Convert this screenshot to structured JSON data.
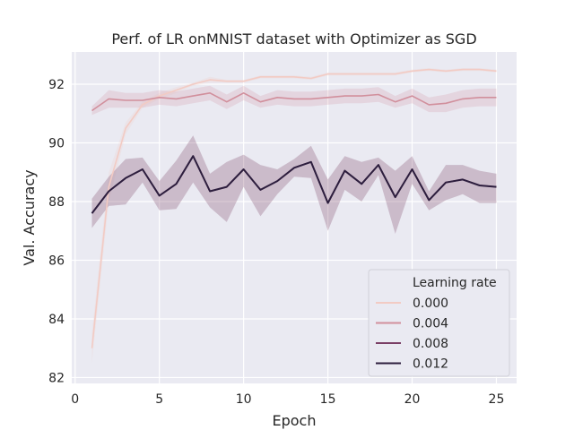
{
  "chart_data": {
    "type": "line",
    "title": "Perf. of LR onMNIST dataset with Optimizer as SGD",
    "xlabel": "Epoch",
    "ylabel": "Val. Accuracy",
    "xlim": [
      -0.2,
      26.2
    ],
    "ylim": [
      81.8,
      93.1
    ],
    "xticks": [
      0,
      5,
      10,
      15,
      20,
      25
    ],
    "yticks": [
      82,
      84,
      86,
      88,
      90,
      92
    ],
    "grid": true,
    "legend": {
      "title": "Learning rate",
      "placement": "lower-right"
    },
    "x": [
      1,
      2,
      3,
      4,
      5,
      6,
      7,
      8,
      9,
      10,
      11,
      12,
      13,
      14,
      15,
      16,
      17,
      18,
      19,
      20,
      21,
      22,
      23,
      24,
      25
    ],
    "series": [
      {
        "name": "0.000",
        "color": "#f2cbc4",
        "values": [
          83.0,
          88.5,
          90.5,
          91.3,
          91.6,
          91.8,
          92.0,
          92.15,
          92.1,
          92.1,
          92.25,
          92.25,
          92.25,
          92.2,
          92.35,
          92.35,
          92.35,
          92.35,
          92.35,
          92.45,
          92.5,
          92.45,
          92.5,
          92.5,
          92.45
        ],
        "lower": [
          82.5,
          88.0,
          90.3,
          91.2,
          91.5,
          91.7,
          91.95,
          92.05,
          92.05,
          92.05,
          92.2,
          92.2,
          92.2,
          92.15,
          92.3,
          92.3,
          92.3,
          92.3,
          92.3,
          92.4,
          92.45,
          92.4,
          92.45,
          92.45,
          92.4
        ],
        "upper": [
          83.5,
          89.0,
          90.7,
          91.4,
          91.7,
          91.9,
          92.05,
          92.25,
          92.15,
          92.15,
          92.3,
          92.3,
          92.3,
          92.25,
          92.4,
          92.4,
          92.4,
          92.4,
          92.4,
          92.5,
          92.55,
          92.5,
          92.55,
          92.55,
          92.5
        ]
      },
      {
        "name": "0.004",
        "color": "#d18f9c",
        "values": [
          91.1,
          91.5,
          91.45,
          91.45,
          91.55,
          91.5,
          91.6,
          91.7,
          91.4,
          91.7,
          91.4,
          91.55,
          91.5,
          91.5,
          91.55,
          91.6,
          91.6,
          91.65,
          91.4,
          91.6,
          91.3,
          91.35,
          91.5,
          91.55,
          91.55
        ],
        "lower": [
          90.95,
          91.2,
          91.2,
          91.2,
          91.3,
          91.25,
          91.35,
          91.45,
          91.15,
          91.45,
          91.2,
          91.3,
          91.25,
          91.25,
          91.3,
          91.35,
          91.35,
          91.4,
          91.2,
          91.35,
          91.05,
          91.05,
          91.2,
          91.25,
          91.25
        ],
        "upper": [
          91.25,
          91.8,
          91.7,
          91.7,
          91.8,
          91.75,
          91.85,
          91.95,
          91.65,
          91.95,
          91.6,
          91.8,
          91.75,
          91.75,
          91.8,
          91.85,
          91.85,
          91.9,
          91.6,
          91.85,
          91.55,
          91.65,
          91.8,
          91.85,
          91.85
        ]
      },
      {
        "name": "0.008",
        "color": "#7a3f66",
        "values": [
          87.6,
          88.35,
          88.8,
          89.1,
          88.2,
          88.6,
          89.55,
          88.35,
          88.5,
          89.1,
          88.4,
          88.7,
          89.15,
          89.35,
          87.95,
          89.05,
          88.6,
          89.25,
          88.15,
          89.1,
          88.05,
          88.65,
          88.75,
          88.55,
          88.5
        ],
        "lower": [
          87.1,
          87.85,
          87.9,
          88.65,
          87.7,
          87.75,
          88.65,
          87.8,
          87.3,
          88.5,
          87.5,
          88.25,
          88.85,
          88.8,
          87.0,
          88.4,
          88.0,
          88.9,
          86.9,
          88.6,
          87.7,
          88.05,
          88.25,
          87.95,
          87.95
        ],
        "upper": [
          88.1,
          88.85,
          89.45,
          89.5,
          88.7,
          89.4,
          90.25,
          88.95,
          89.35,
          89.6,
          89.25,
          89.1,
          89.45,
          89.9,
          88.75,
          89.55,
          89.35,
          89.5,
          89.05,
          89.55,
          88.35,
          89.25,
          89.25,
          89.05,
          88.95
        ]
      },
      {
        "name": "0.012",
        "color": "#2d1e3e",
        "values": [
          87.6,
          88.35,
          88.8,
          89.1,
          88.2,
          88.6,
          89.55,
          88.35,
          88.5,
          89.1,
          88.4,
          88.7,
          89.15,
          89.35,
          87.95,
          89.05,
          88.6,
          89.25,
          88.15,
          89.1,
          88.05,
          88.65,
          88.75,
          88.55,
          88.5
        ]
      }
    ]
  }
}
